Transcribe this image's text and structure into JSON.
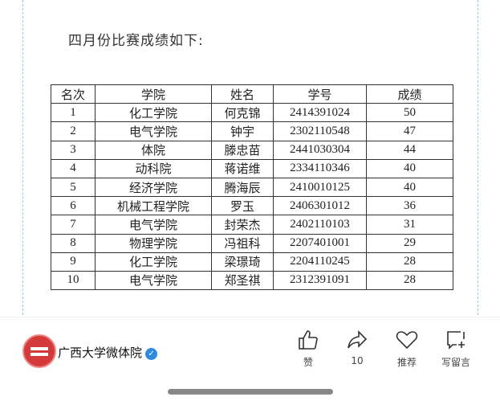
{
  "intro": "四月份比赛成绩如下:",
  "table": {
    "headers": [
      "名次",
      "学院",
      "姓名",
      "学号",
      "成绩"
    ],
    "rows": [
      [
        "1",
        "化工学院",
        "何克锦",
        "2414391024",
        "50"
      ],
      [
        "2",
        "电气学院",
        "钟宇",
        "2302110548",
        "47"
      ],
      [
        "3",
        "体院",
        "滕忠苗",
        "2441030304",
        "44"
      ],
      [
        "4",
        "动科院",
        "蒋诺维",
        "2334110346",
        "40"
      ],
      [
        "5",
        "经济学院",
        "腾海辰",
        "2410010125",
        "40"
      ],
      [
        "6",
        "机械工程学院",
        "罗玉",
        "2406301012",
        "36"
      ],
      [
        "7",
        "电气学院",
        "封荣杰",
        "2402110103",
        "31"
      ],
      [
        "8",
        "物理学院",
        "冯祖科",
        "2207401001",
        "29"
      ],
      [
        "9",
        "化工学院",
        "梁璟琦",
        "2204110245",
        "28"
      ],
      [
        "10",
        "电气学院",
        "郑圣祺",
        "2312391091",
        "28"
      ]
    ]
  },
  "footer": {
    "account": "广西大学微体院",
    "like": "赞",
    "share_count": "10",
    "recommend": "推荐",
    "comment": "写留言"
  }
}
